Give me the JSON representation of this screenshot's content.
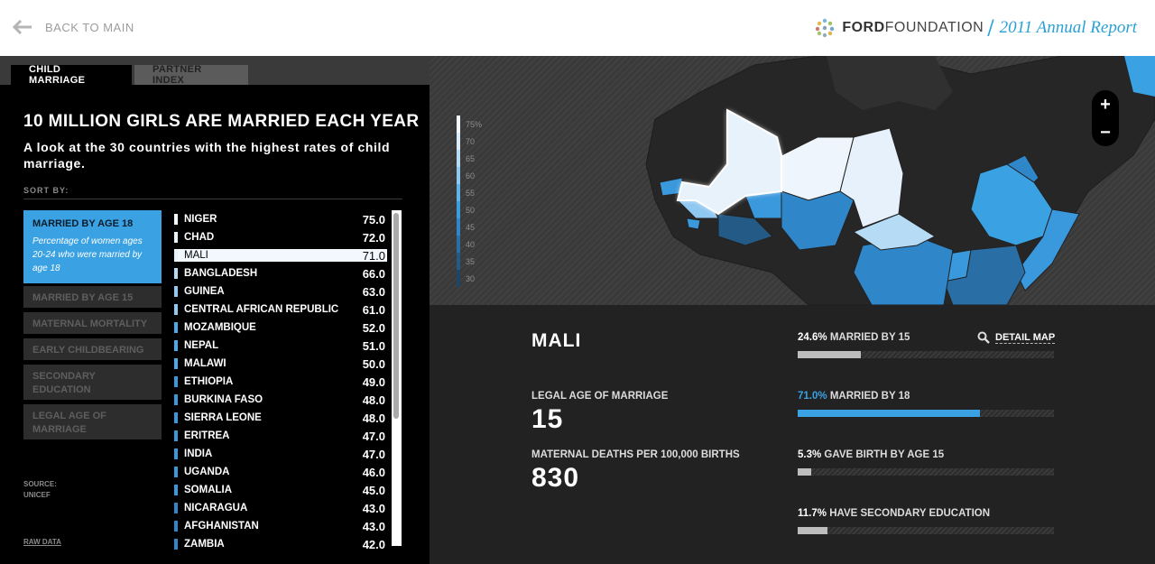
{
  "header": {
    "back_label": "BACK TO MAIN",
    "brand_ford": "FORD",
    "brand_foundation": "FOUNDATION",
    "brand_report": "2011 Annual Report"
  },
  "tabs": [
    {
      "label": "CHILD MARRIAGE",
      "active": true
    },
    {
      "label": "PARTNER INDEX",
      "active": false
    }
  ],
  "panel": {
    "title": "10 MILLION GIRLS ARE MARRIED EACH YEAR",
    "subtitle": "A look at the 30 countries with the highest rates of child marriage.",
    "sort_by_label": "SORT BY:",
    "sort_options": [
      {
        "label": "MARRIED BY AGE 18",
        "description": "Percentage of women ages 20-24 who were married by age 18",
        "active": true
      },
      {
        "label": "MARRIED BY AGE 15",
        "active": false
      },
      {
        "label": "MATERNAL MORTALITY",
        "active": false
      },
      {
        "label": "EARLY CHILDBEARING",
        "active": false
      },
      {
        "label": "SECONDARY EDUCATION",
        "active": false
      },
      {
        "label": "LEGAL AGE OF MARRIAGE",
        "active": false
      }
    ],
    "source_label": "SOURCE:",
    "source_value": "UNICEF",
    "raw_data_label": "RAW DATA"
  },
  "countries": [
    {
      "name": "NIGER",
      "value": "75.0",
      "color": "#f4f9fd"
    },
    {
      "name": "CHAD",
      "value": "72.0",
      "color": "#e8f2fb"
    },
    {
      "name": "MALI",
      "value": "71.0",
      "color": "#e8f2fb",
      "selected": true
    },
    {
      "name": "BANGLADESH",
      "value": "66.0",
      "color": "#b6dbf5"
    },
    {
      "name": "GUINEA",
      "value": "63.0",
      "color": "#8fc8f0"
    },
    {
      "name": "CENTRAL AFRICAN REPUBLIC",
      "value": "61.0",
      "color": "#8fc8f0"
    },
    {
      "name": "MOZAMBIQUE",
      "value": "52.0",
      "color": "#4aaaea"
    },
    {
      "name": "NEPAL",
      "value": "51.0",
      "color": "#4aaaea"
    },
    {
      "name": "MALAWI",
      "value": "50.0",
      "color": "#4aaaea"
    },
    {
      "name": "ETHIOPIA",
      "value": "49.0",
      "color": "#3a98dd"
    },
    {
      "name": "BURKINA FASO",
      "value": "48.0",
      "color": "#3a98dd"
    },
    {
      "name": "SIERRA LEONE",
      "value": "48.0",
      "color": "#3a98dd"
    },
    {
      "name": "ERITREA",
      "value": "47.0",
      "color": "#3a98dd"
    },
    {
      "name": "INDIA",
      "value": "47.0",
      "color": "#3a98dd"
    },
    {
      "name": "UGANDA",
      "value": "46.0",
      "color": "#3a98dd"
    },
    {
      "name": "SOMALIA",
      "value": "45.0",
      "color": "#3a98dd"
    },
    {
      "name": "NICARAGUA",
      "value": "43.0",
      "color": "#2f86c8"
    },
    {
      "name": "AFGHANISTAN",
      "value": "43.0",
      "color": "#2f86c8"
    },
    {
      "name": "ZAMBIA",
      "value": "42.0",
      "color": "#2f86c8"
    }
  ],
  "legend": [
    {
      "label": "75%",
      "color": "#f4f9fd"
    },
    {
      "label": "70",
      "color": "#dcecf9"
    },
    {
      "label": "65",
      "color": "#b6dbf5"
    },
    {
      "label": "60",
      "color": "#8fc8f0"
    },
    {
      "label": "55",
      "color": "#5fb3ea"
    },
    {
      "label": "50",
      "color": "#3a9fe0"
    },
    {
      "label": "45",
      "color": "#2f86c8"
    },
    {
      "label": "40",
      "color": "#2a6ea6"
    },
    {
      "label": "35",
      "color": "#235a86"
    },
    {
      "label": "30",
      "color": "#1c4566"
    }
  ],
  "zoom": {
    "in": "+",
    "out": "−"
  },
  "detail": {
    "country": "MALI",
    "legal_age_label": "LEGAL AGE OF MARRIAGE",
    "legal_age_value": "15",
    "maternal_label": "MATERNAL DEATHS PER 100,000 BIRTHS",
    "maternal_value": "830",
    "detail_map_label": "DETAIL MAP",
    "stats": [
      {
        "pct": "24.6%",
        "label": "MARRIED BY 15",
        "fraction": 0.246,
        "color": "#bdbdbd",
        "highlight": false
      },
      {
        "pct": "71.0%",
        "label": "MARRIED BY 18",
        "fraction": 0.71,
        "color": "#3aa1e3",
        "highlight": true
      },
      {
        "pct": "5.3%",
        "label": "GAVE BIRTH BY AGE 15",
        "fraction": 0.053,
        "color": "#bdbdbd",
        "highlight": false
      },
      {
        "pct": "11.7%",
        "label": "HAVE SECONDARY EDUCATION",
        "fraction": 0.117,
        "color": "#bdbdbd",
        "highlight": false
      }
    ]
  }
}
